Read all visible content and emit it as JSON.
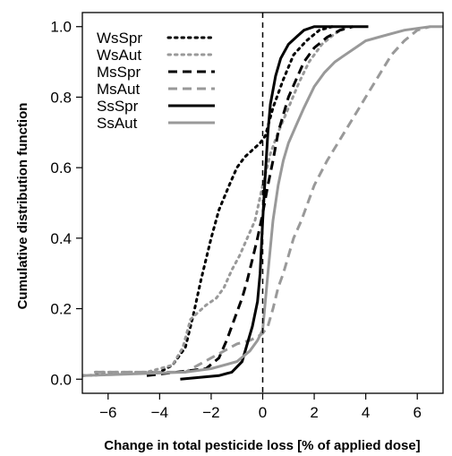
{
  "chart_data": {
    "type": "line",
    "title": "",
    "xlabel": "Change in total pesticide loss [% of applied dose]",
    "ylabel": "Cumulative distribution function",
    "xlim": [
      -7,
      7
    ],
    "ylim": [
      -0.04,
      1.04
    ],
    "xticks": [
      -6,
      -4,
      -2,
      0,
      2,
      4,
      6
    ],
    "xtick_labels": [
      "−6",
      "−4",
      "−2",
      "0",
      "2",
      "4",
      "6"
    ],
    "yticks": [
      0.0,
      0.2,
      0.4,
      0.6,
      0.8,
      1.0
    ],
    "ytick_labels": [
      "0.0",
      "0.2",
      "0.4",
      "0.6",
      "0.8",
      "1.0"
    ],
    "reference_line": {
      "x": 0,
      "style": "dashed",
      "color": "#000000"
    },
    "grid": false,
    "legend_position": "top-left",
    "series": [
      {
        "name": "WsSpr",
        "color": "#000000",
        "dash": "dot",
        "x": [
          -7,
          -4,
          -3.5,
          -3,
          -2.7,
          -2.4,
          -2.0,
          -1.7,
          -1.3,
          -1.0,
          -0.7,
          -0.4,
          -0.1,
          0.1,
          0.4,
          0.8,
          1.2,
          1.7,
          2.2,
          2.7
        ],
        "y": [
          0.01,
          0.02,
          0.04,
          0.09,
          0.18,
          0.28,
          0.4,
          0.48,
          0.55,
          0.6,
          0.63,
          0.65,
          0.67,
          0.69,
          0.77,
          0.85,
          0.92,
          0.96,
          0.99,
          1.0
        ]
      },
      {
        "name": "WsAut",
        "color": "#999999",
        "dash": "dot",
        "x": [
          -6.5,
          -4.5,
          -3.5,
          -3.1,
          -2.8,
          -2.5,
          -2.2,
          -1.8,
          -1.5,
          -1.2,
          -0.9,
          -0.6,
          -0.3,
          0.0,
          0.3,
          0.6,
          1.0,
          1.4,
          1.8,
          2.3,
          2.8,
          3.3
        ],
        "y": [
          0.02,
          0.02,
          0.04,
          0.09,
          0.17,
          0.19,
          0.21,
          0.23,
          0.26,
          0.31,
          0.35,
          0.4,
          0.45,
          0.55,
          0.64,
          0.7,
          0.77,
          0.84,
          0.9,
          0.95,
          0.98,
          1.0
        ]
      },
      {
        "name": "MsSpr",
        "color": "#000000",
        "dash": "dash",
        "x": [
          -4.5,
          -2.2,
          -1.7,
          -1.4,
          -1.2,
          -1.0,
          -0.8,
          -0.6,
          -0.4,
          -0.2,
          0.0,
          0.2,
          0.4,
          0.6,
          0.8,
          1.0,
          1.3,
          1.6,
          2.0,
          2.5,
          3.0,
          3.5
        ],
        "y": [
          0.01,
          0.03,
          0.06,
          0.11,
          0.15,
          0.19,
          0.23,
          0.28,
          0.34,
          0.4,
          0.47,
          0.55,
          0.62,
          0.7,
          0.75,
          0.8,
          0.85,
          0.9,
          0.94,
          0.97,
          0.99,
          1.0
        ]
      },
      {
        "name": "MsAut",
        "color": "#999999",
        "dash": "dash",
        "x": [
          -6.5,
          -3.0,
          -2.5,
          -2.0,
          -1.5,
          -1.0,
          -0.5,
          -0.2,
          0.0,
          0.2,
          0.4,
          0.6,
          0.8,
          1.0,
          1.2,
          1.5,
          2.0,
          2.5,
          3.0,
          3.5,
          4.0,
          4.5,
          5.0,
          5.5,
          6.0,
          6.5
        ],
        "y": [
          0.02,
          0.02,
          0.04,
          0.06,
          0.08,
          0.1,
          0.11,
          0.12,
          0.13,
          0.15,
          0.2,
          0.26,
          0.3,
          0.35,
          0.4,
          0.45,
          0.55,
          0.62,
          0.68,
          0.74,
          0.8,
          0.86,
          0.92,
          0.96,
          0.99,
          1.0
        ]
      },
      {
        "name": "SsSpr",
        "color": "#000000",
        "dash": "solid",
        "x": [
          -3.2,
          -1.7,
          -1.2,
          -0.8,
          -0.6,
          -0.4,
          -0.2,
          -0.1,
          0.0,
          0.1,
          0.2,
          0.3,
          0.5,
          0.7,
          1.0,
          1.3,
          1.6,
          2.0,
          2.5,
          3.0,
          4.1
        ],
        "y": [
          0.0,
          0.01,
          0.02,
          0.05,
          0.1,
          0.15,
          0.22,
          0.3,
          0.45,
          0.58,
          0.7,
          0.78,
          0.86,
          0.91,
          0.95,
          0.97,
          0.99,
          1.0,
          1.0,
          1.0,
          1.0
        ]
      },
      {
        "name": "SsAut",
        "color": "#999999",
        "dash": "solid",
        "x": [
          -7,
          -3.0,
          -2.0,
          -1.0,
          -0.5,
          -0.2,
          0.0,
          0.2,
          0.4,
          0.6,
          0.8,
          1.0,
          1.3,
          1.6,
          2.0,
          2.4,
          2.8,
          3.2,
          3.6,
          4.0,
          4.5,
          5.0,
          5.5,
          6.0,
          6.5,
          7.0
        ],
        "y": [
          0.01,
          0.02,
          0.03,
          0.05,
          0.08,
          0.11,
          0.14,
          0.3,
          0.45,
          0.55,
          0.62,
          0.67,
          0.72,
          0.77,
          0.83,
          0.87,
          0.9,
          0.92,
          0.94,
          0.96,
          0.97,
          0.98,
          0.99,
          0.995,
          1.0,
          1.0
        ]
      }
    ]
  }
}
